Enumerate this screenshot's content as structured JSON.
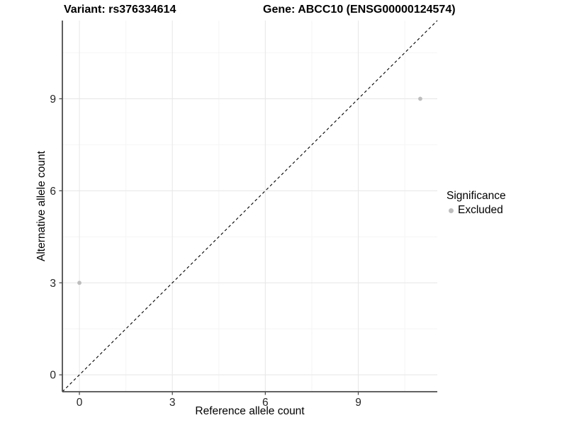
{
  "header": {
    "variant_title": "Variant: rs376334614",
    "gene_title": "Gene: ABCC10 (ENSG00000124574)"
  },
  "chart_data": {
    "type": "scatter",
    "title": "Variant: rs376334614 / Gene: ABCC10 (ENSG00000124574)",
    "xlabel": "Reference allele count",
    "ylabel": "Alternative allele count",
    "xlim": [
      -0.55,
      11.55
    ],
    "ylim": [
      -0.55,
      11.55
    ],
    "x_major_ticks": [
      0,
      3,
      6,
      9
    ],
    "x_tick_labels": [
      "0",
      "3",
      "6",
      "9"
    ],
    "y_major_ticks": [
      0,
      3,
      6,
      9
    ],
    "y_tick_labels": [
      "0",
      "3",
      "6",
      "9"
    ],
    "x_minor_ticks": [
      1.5,
      4.5,
      7.5,
      10.5
    ],
    "y_minor_ticks": [
      1.5,
      4.5,
      7.5,
      10.5
    ],
    "grid": true,
    "series": [
      {
        "name": "Excluded",
        "color": "#bdbdbd",
        "points": [
          {
            "x": 0,
            "y": 3
          },
          {
            "x": 11,
            "y": 9
          }
        ]
      }
    ],
    "reference_line": {
      "kind": "identity",
      "slope": 1,
      "intercept": 0,
      "style": "dashed",
      "color": "#000000"
    },
    "legend": {
      "title": "Significance",
      "position": "right",
      "items": [
        {
          "label": "Excluded",
          "color": "#bdbdbd"
        }
      ]
    }
  },
  "colors": {
    "panel_bg": "#ffffff",
    "grid_major": "#e8e8e8",
    "grid_minor": "#f4f4f4",
    "axis": "#4d4d4d",
    "tick_label": "#262626",
    "title": "#000000"
  }
}
